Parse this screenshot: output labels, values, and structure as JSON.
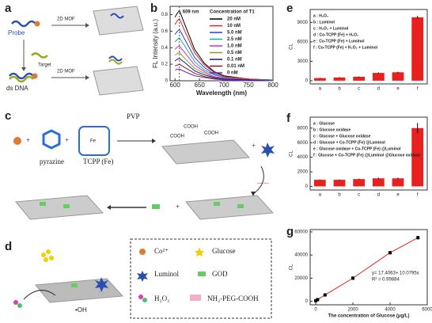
{
  "panels": {
    "a": "a",
    "b": "b",
    "c": "c",
    "d": "d",
    "e": "e",
    "f": "f",
    "g": "g"
  },
  "diagram_a": {
    "probe": "Probe",
    "mof_top": "2D MOF",
    "target": "Target",
    "ds_dna": "ds DNA",
    "mof_bottom": "2D MOF"
  },
  "diagram_c": {
    "pvp": "PVP",
    "pyrazine": "pyrazine",
    "tcpp": "TCPP (Fe)",
    "fe": "Fe",
    "cooh": [
      "COOH",
      "COOH",
      "COOH"
    ]
  },
  "diagram_d": {
    "oh": "•OH",
    "legend": {
      "co": "Co²⁺",
      "glucose": "Glucose",
      "luminol": "Luminol",
      "god": "GOD",
      "h2o2": "H₂O₂",
      "peg": "NH₂-PEG-COOH"
    }
  },
  "chart_data": [
    {
      "type": "line",
      "xlabel": "Wavelength (nm)",
      "ylabel": "FL Intensity (a.u.)",
      "annotation": "609 nm",
      "legend_title": "Concentration of T1",
      "x": [
        600,
        605,
        609,
        620,
        640,
        660,
        680,
        700,
        750,
        800
      ],
      "xlim": [
        590,
        800
      ],
      "xticks": [
        600,
        650,
        700,
        750,
        800
      ],
      "ylim": [
        0,
        0.9
      ],
      "yticks": [
        0,
        0.2,
        0.4,
        0.6,
        0.8
      ],
      "series": [
        {
          "name": "20  nM",
          "color": "#000000",
          "values": [
            0.77,
            0.82,
            0.85,
            0.68,
            0.38,
            0.21,
            0.11,
            0.06,
            0.02,
            0.01
          ]
        },
        {
          "name": "10  nM",
          "color": "#e8201e",
          "values": [
            0.68,
            0.73,
            0.75,
            0.6,
            0.34,
            0.19,
            0.1,
            0.05,
            0.02,
            0.01
          ]
        },
        {
          "name": "5.0  nM",
          "color": "#1f3fd6",
          "values": [
            0.56,
            0.6,
            0.62,
            0.5,
            0.28,
            0.16,
            0.08,
            0.04,
            0.01,
            0.01
          ]
        },
        {
          "name": "2.5  nM",
          "color": "#20a8a8",
          "values": [
            0.47,
            0.5,
            0.52,
            0.42,
            0.23,
            0.13,
            0.07,
            0.04,
            0.01,
            0.01
          ]
        },
        {
          "name": "1.0  nM",
          "color": "#d02cc8",
          "values": [
            0.38,
            0.41,
            0.42,
            0.34,
            0.19,
            0.11,
            0.05,
            0.03,
            0.01,
            0
          ]
        },
        {
          "name": "0.5  nM",
          "color": "#9a9a1a",
          "values": [
            0.31,
            0.33,
            0.34,
            0.27,
            0.15,
            0.09,
            0.04,
            0.02,
            0.01,
            0
          ]
        },
        {
          "name": "0.1  nM",
          "color": "#1a1a8a",
          "values": [
            0.24,
            0.26,
            0.27,
            0.22,
            0.12,
            0.07,
            0.04,
            0.02,
            0.01,
            0
          ]
        },
        {
          "name": "0.01  nM",
          "color": "#8a1a1a",
          "values": [
            0.18,
            0.19,
            0.2,
            0.16,
            0.09,
            0.05,
            0.03,
            0.01,
            0,
            0
          ]
        },
        {
          "name": "0 nM",
          "color": "#6a2ab0",
          "values": [
            0.13,
            0.14,
            0.14,
            0.11,
            0.06,
            0.04,
            0.02,
            0.01,
            0,
            0
          ]
        }
      ]
    },
    {
      "type": "bar",
      "ylabel": "CL",
      "categories": [
        "a",
        "b",
        "c",
        "d",
        "e",
        "f"
      ],
      "values": [
        400,
        500,
        600,
        1200,
        1300,
        9800
      ],
      "errors": [
        50,
        50,
        50,
        80,
        80,
        200
      ],
      "color": "#e8201e",
      "ylim": [
        -500,
        11000
      ],
      "yticks": [
        0,
        3000,
        6000,
        9000
      ],
      "notes": [
        "a : H₂O₂",
        "b : Luminol",
        "c : H₂O₂ + Luminol",
        "d : Co-TCPP (Fe) + H₂O₂",
        "e : Co-TCPP (Fe) + Luminol",
        "f : Co-TCPP (Fe) + H₂O₂ + Luminol"
      ]
    },
    {
      "type": "bar",
      "ylabel": "CL",
      "categories": [
        "a",
        "b",
        "c",
        "d",
        "e",
        "f"
      ],
      "values": [
        900,
        900,
        1000,
        1100,
        1100,
        8000
      ],
      "errors": [
        50,
        50,
        50,
        80,
        80,
        700
      ],
      "color": "#e8201e",
      "ylim": [
        -500,
        9500
      ],
      "yticks": [
        0,
        2000,
        4000,
        6000,
        8000
      ],
      "notes": [
        "a : Glucose",
        "b : Glucose oxidase",
        "c : Glucose + Glucose oxidase",
        "d : Glucose + Co-TCPP (Fe) @Luminol",
        "e : Glucose oxidase + Co-TCPP (Fe) @Luminol",
        "f : Glucose + Co-TCPP (Fe) @Luminol @Glucose oxidase"
      ]
    },
    {
      "type": "scatter",
      "xlabel": "The concentration of Glucose (μg/L)",
      "ylabel": "CL",
      "x": [
        0,
        100,
        500,
        2000,
        4000,
        5500
      ],
      "values": [
        500,
        1500,
        5500,
        20000,
        42000,
        55000
      ],
      "errors": [
        300,
        300,
        800,
        1500,
        1500,
        1500
      ],
      "color": "#e8201e",
      "xlim": [
        -300,
        6000
      ],
      "xticks": [
        0,
        2000,
        4000,
        6000
      ],
      "ylim": [
        -3000,
        62000
      ],
      "yticks": [
        0,
        20000,
        40000,
        60000
      ],
      "annotations": [
        "y= 17.4063+ 10.0795x",
        "R² = 0.99884"
      ]
    }
  ]
}
